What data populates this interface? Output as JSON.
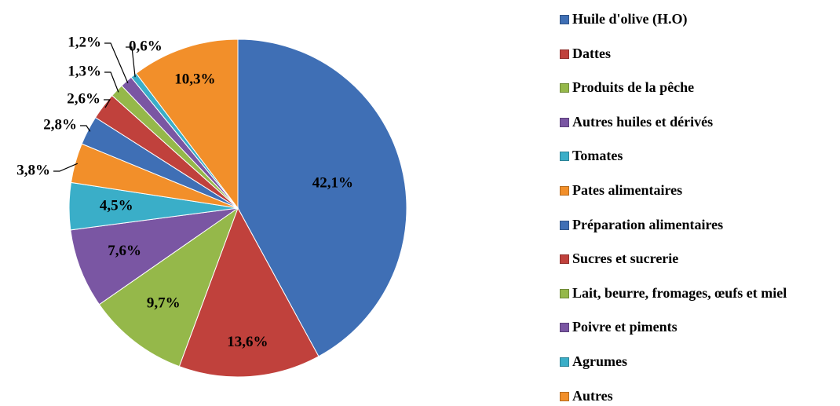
{
  "chart_data": {
    "type": "pie",
    "categories": [
      "Huile d'olive (H.O)",
      "Dattes",
      "Produits de la pêche",
      "Autres huiles et dérivés",
      "Tomates",
      "Pates alimentaires",
      "Préparation alimentaires",
      "Sucres et sucrerie",
      "Lait, beurre, fromages, œufs et miel",
      "Poivre et piments",
      "Agrumes",
      "Autres"
    ],
    "values": [
      42.1,
      13.6,
      9.7,
      7.6,
      4.5,
      3.8,
      2.8,
      2.6,
      1.3,
      1.2,
      0.6,
      10.3
    ],
    "value_labels": [
      "42,1%",
      "13,6%",
      "9,7%",
      "7,6%",
      "4,5%",
      "3,8%",
      "2,8%",
      "2,6%",
      "1,3%",
      "1,2%",
      "0,6%",
      "10,3%"
    ],
    "colors": [
      "#3f6fb5",
      "#c0413c",
      "#95b84a",
      "#7a56a3",
      "#3aaec8",
      "#f28f2a",
      "#3f6fb5",
      "#c0413c",
      "#95b84a",
      "#7a56a3",
      "#3aaec8",
      "#f28f2a"
    ],
    "legend": "right"
  }
}
